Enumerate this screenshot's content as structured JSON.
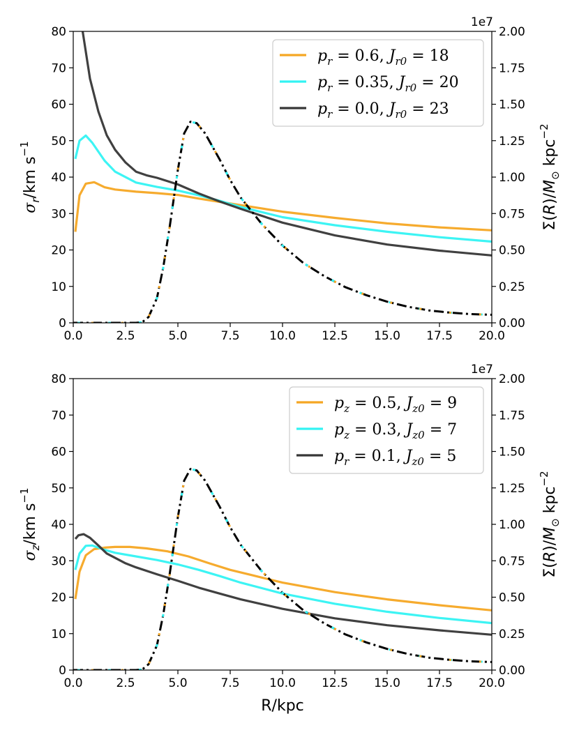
{
  "colors": {
    "orange": "#f5a623",
    "cyan": "#33f3f3",
    "dark": "#363636",
    "black": "#000000"
  },
  "chart_data": [
    {
      "type": "line",
      "panel": "top",
      "xlabel": "",
      "ylabel": "σr/km s−1",
      "ylabel_right": "Σ(R)/M⊙ kpc−2",
      "xlim": [
        0.0,
        20.0
      ],
      "ylim": [
        0,
        80
      ],
      "ylim_right": [
        0.0,
        2.0
      ],
      "right_offset": "1e7",
      "x_ticks": [
        "0.0",
        "2.5",
        "5.0",
        "7.5",
        "10.0",
        "12.5",
        "15.0",
        "17.5",
        "20.0"
      ],
      "y_ticks": [
        "0",
        "10",
        "20",
        "30",
        "40",
        "50",
        "60",
        "70",
        "80"
      ],
      "y_ticks_right": [
        "0.00",
        "0.25",
        "0.50",
        "0.75",
        "1.00",
        "1.25",
        "1.50",
        "1.75",
        "2.00"
      ],
      "legend_position": "top-right",
      "series": [
        {
          "name": "pr = 0.6, Jr0 = 18",
          "color": "#f5a623",
          "x": [
            0.1,
            0.3,
            0.6,
            1.0,
            1.5,
            2.0,
            3.0,
            4.0,
            5.0,
            6.0,
            7.0,
            8.0,
            10.0,
            12.5,
            15.0,
            17.5,
            20.0
          ],
          "y": [
            25,
            35,
            38.2,
            38.6,
            37.2,
            36.6,
            36.0,
            35.6,
            35.1,
            34.1,
            33.2,
            32.3,
            30.5,
            28.8,
            27.3,
            26.2,
            25.4
          ]
        },
        {
          "name": "pr = 0.35, Jr0 = 20",
          "color": "#33f3f3",
          "x": [
            0.1,
            0.3,
            0.6,
            0.9,
            1.5,
            2.0,
            3.0,
            4.0,
            5.0,
            6.0,
            7.0,
            8.0,
            10.0,
            12.5,
            15.0,
            17.5,
            20.0
          ],
          "y": [
            45,
            50,
            51.4,
            49.5,
            44.5,
            41.5,
            38.5,
            37.3,
            36.3,
            35.0,
            33.5,
            31.8,
            29.0,
            26.8,
            25.0,
            23.5,
            22.3
          ]
        },
        {
          "name": "pr = 0.0, Jr0 = 23",
          "color": "#363636",
          "x": [
            0.45,
            0.8,
            1.2,
            1.6,
            2.0,
            2.5,
            3.0,
            3.5,
            4.0,
            5.0,
            6.0,
            7.0,
            8.0,
            10.0,
            12.5,
            15.0,
            17.5,
            20.0
          ],
          "y": [
            80,
            67,
            58,
            51.5,
            47.5,
            44,
            41.5,
            40.5,
            39.8,
            38,
            35.5,
            33.3,
            31.3,
            27.5,
            24.0,
            21.5,
            19.8,
            18.5
          ]
        }
      ],
      "surface_density": {
        "name": "Σ(R)",
        "style": "dash-dot",
        "colors": [
          "#000000",
          "#33f3f3",
          "#f5a623"
        ],
        "x": [
          0.0,
          1.0,
          2.0,
          3.0,
          3.3,
          3.6,
          4.0,
          4.3,
          4.6,
          5.0,
          5.3,
          5.6,
          5.9,
          6.3,
          7.0,
          7.5,
          8.0,
          9.0,
          10.0,
          11.0,
          12.0,
          13.0,
          14.0,
          15.0,
          16.0,
          17.0,
          18.0,
          19.0,
          20.0
        ],
        "y": [
          0,
          0,
          0,
          0,
          0.005,
          0.04,
          0.17,
          0.38,
          0.65,
          1.05,
          1.3,
          1.38,
          1.37,
          1.3,
          1.12,
          0.98,
          0.86,
          0.68,
          0.53,
          0.41,
          0.32,
          0.245,
          0.19,
          0.145,
          0.11,
          0.085,
          0.07,
          0.06,
          0.055
        ]
      }
    },
    {
      "type": "line",
      "panel": "bottom",
      "xlabel": "R/kpc",
      "ylabel": "σz/km s−1",
      "ylabel_right": "Σ(R)/M⊙ kpc−2",
      "xlim": [
        0.0,
        20.0
      ],
      "ylim": [
        0,
        80
      ],
      "ylim_right": [
        0.0,
        2.0
      ],
      "right_offset": "1e7",
      "x_ticks": [
        "0.0",
        "2.5",
        "5.0",
        "7.5",
        "10.0",
        "12.5",
        "15.0",
        "17.5",
        "20.0"
      ],
      "y_ticks": [
        "0",
        "10",
        "20",
        "30",
        "40",
        "50",
        "60",
        "70",
        "80"
      ],
      "y_ticks_right": [
        "0.00",
        "0.25",
        "0.50",
        "0.75",
        "1.00",
        "1.25",
        "1.50",
        "1.75",
        "2.00"
      ],
      "legend_position": "top-right",
      "series": [
        {
          "name": "pz = 0.5, Jz0 = 9",
          "color": "#f5a623",
          "x": [
            0.1,
            0.3,
            0.6,
            1.0,
            1.5,
            2.0,
            2.7,
            3.5,
            4.5,
            5.5,
            6.5,
            7.5,
            8.5,
            10.0,
            12.5,
            15.0,
            17.5,
            20.0
          ],
          "y": [
            19.5,
            27,
            31.5,
            33.2,
            33.6,
            33.8,
            33.8,
            33.4,
            32.6,
            31.2,
            29.3,
            27.5,
            26.1,
            24.0,
            21.4,
            19.4,
            17.8,
            16.4
          ]
        },
        {
          "name": "pz = 0.3, Jz0 = 7",
          "color": "#33f3f3",
          "x": [
            0.1,
            0.3,
            0.6,
            0.9,
            1.5,
            2.0,
            3.0,
            4.0,
            5.0,
            6.0,
            7.0,
            8.0,
            10.0,
            12.5,
            15.0,
            17.5,
            20.0
          ],
          "y": [
            27.5,
            32,
            34.1,
            34.2,
            33.0,
            32.2,
            31.2,
            30.2,
            29.0,
            27.5,
            25.8,
            24.0,
            21.0,
            18.2,
            16.0,
            14.3,
            12.9
          ]
        },
        {
          "name": "pr = 0.1, Jz0 = 5",
          "color": "#363636",
          "x": [
            0.1,
            0.25,
            0.5,
            0.8,
            1.2,
            1.6,
            2.0,
            2.5,
            3.0,
            4.0,
            5.0,
            6.0,
            7.0,
            8.0,
            10.0,
            12.5,
            15.0,
            17.5,
            20.0
          ],
          "y": [
            36,
            37,
            37.3,
            36.3,
            34.2,
            32.0,
            30.8,
            29.3,
            28.2,
            26.3,
            24.5,
            22.6,
            21.0,
            19.4,
            16.8,
            14.2,
            12.3,
            10.9,
            9.7
          ]
        }
      ],
      "surface_density": {
        "name": "Σ(R)",
        "style": "dash-dot",
        "colors": [
          "#000000",
          "#33f3f3",
          "#f5a623"
        ],
        "x": [
          0.0,
          1.0,
          2.0,
          3.0,
          3.3,
          3.6,
          4.0,
          4.3,
          4.6,
          5.0,
          5.3,
          5.6,
          5.9,
          6.3,
          7.0,
          7.5,
          8.0,
          9.0,
          10.0,
          11.0,
          12.0,
          13.0,
          14.0,
          15.0,
          16.0,
          17.0,
          18.0,
          19.0,
          20.0
        ],
        "y": [
          0,
          0,
          0,
          0,
          0.005,
          0.04,
          0.17,
          0.38,
          0.65,
          1.05,
          1.3,
          1.38,
          1.37,
          1.3,
          1.12,
          0.98,
          0.86,
          0.68,
          0.53,
          0.41,
          0.32,
          0.245,
          0.19,
          0.145,
          0.11,
          0.085,
          0.07,
          0.06,
          0.055
        ]
      }
    }
  ]
}
